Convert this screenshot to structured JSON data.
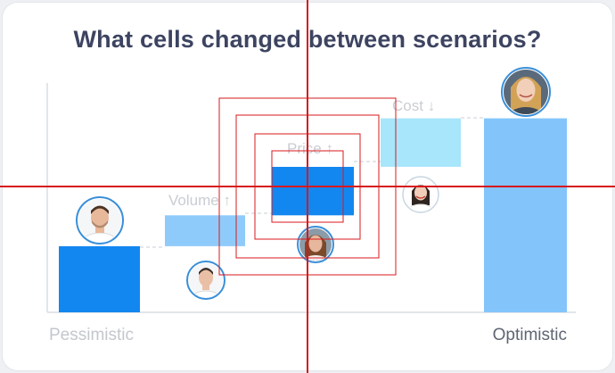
{
  "title": "What cells changed between scenarios?",
  "chart_data": {
    "type": "bar",
    "title": "What cells changed between scenarios?",
    "categories": [
      "Pessimistic",
      "Volume",
      "Price",
      "Cost",
      "Optimistic"
    ],
    "steps": [
      {
        "label": "Pessimistic",
        "kind": "total",
        "start": 0,
        "end": 30
      },
      {
        "label": "Volume",
        "kind": "delta",
        "direction": "up",
        "start": 30,
        "end": 44
      },
      {
        "label": "Price",
        "kind": "delta",
        "direction": "up",
        "start": 44,
        "end": 66
      },
      {
        "label": "Cost",
        "kind": "delta",
        "direction": "down",
        "start": 66,
        "end": 88
      },
      {
        "label": "Optimistic",
        "kind": "total",
        "start": 0,
        "end": 88
      }
    ],
    "ylim": [
      0,
      100
    ],
    "grid": false,
    "colors": {
      "total_left": "#1387f0",
      "volume": "#8fcbfa",
      "price": "#1387f0",
      "cost": "#a7e6fb",
      "total_right": "#83c5fb",
      "connector": "#c8cdd4",
      "label_muted": "#c9cdd3",
      "label_dark": "#5f6672"
    }
  },
  "axis_labels": {
    "left": "Pessimistic",
    "right": "Optimistic"
  },
  "delta_labels": {
    "volume": "Volume",
    "price": "Price",
    "cost": "Cost"
  },
  "arrows": {
    "up": "↑",
    "down": "↓"
  },
  "avatars": [
    {
      "name": "man-avatar",
      "skin": "#e8b89a",
      "hair": "#4a3324",
      "shirt": "#ffffff"
    },
    {
      "name": "man-suit-avatar",
      "skin": "#e9c0a6",
      "hair": "#3b2f28",
      "shirt": "#ffffff"
    },
    {
      "name": "woman-brown-avatar",
      "skin": "#e7b79d",
      "hair": "#7a4a2a",
      "shirt": "#f4f4f4"
    },
    {
      "name": "woman-dark-avatar",
      "skin": "#f0cdb8",
      "hair": "#2e2420",
      "shirt": "#ffffff"
    },
    {
      "name": "woman-blonde-avatar",
      "skin": "#f2cfb8",
      "hair": "#d2a257",
      "shirt": "#5b6a7a"
    }
  ]
}
